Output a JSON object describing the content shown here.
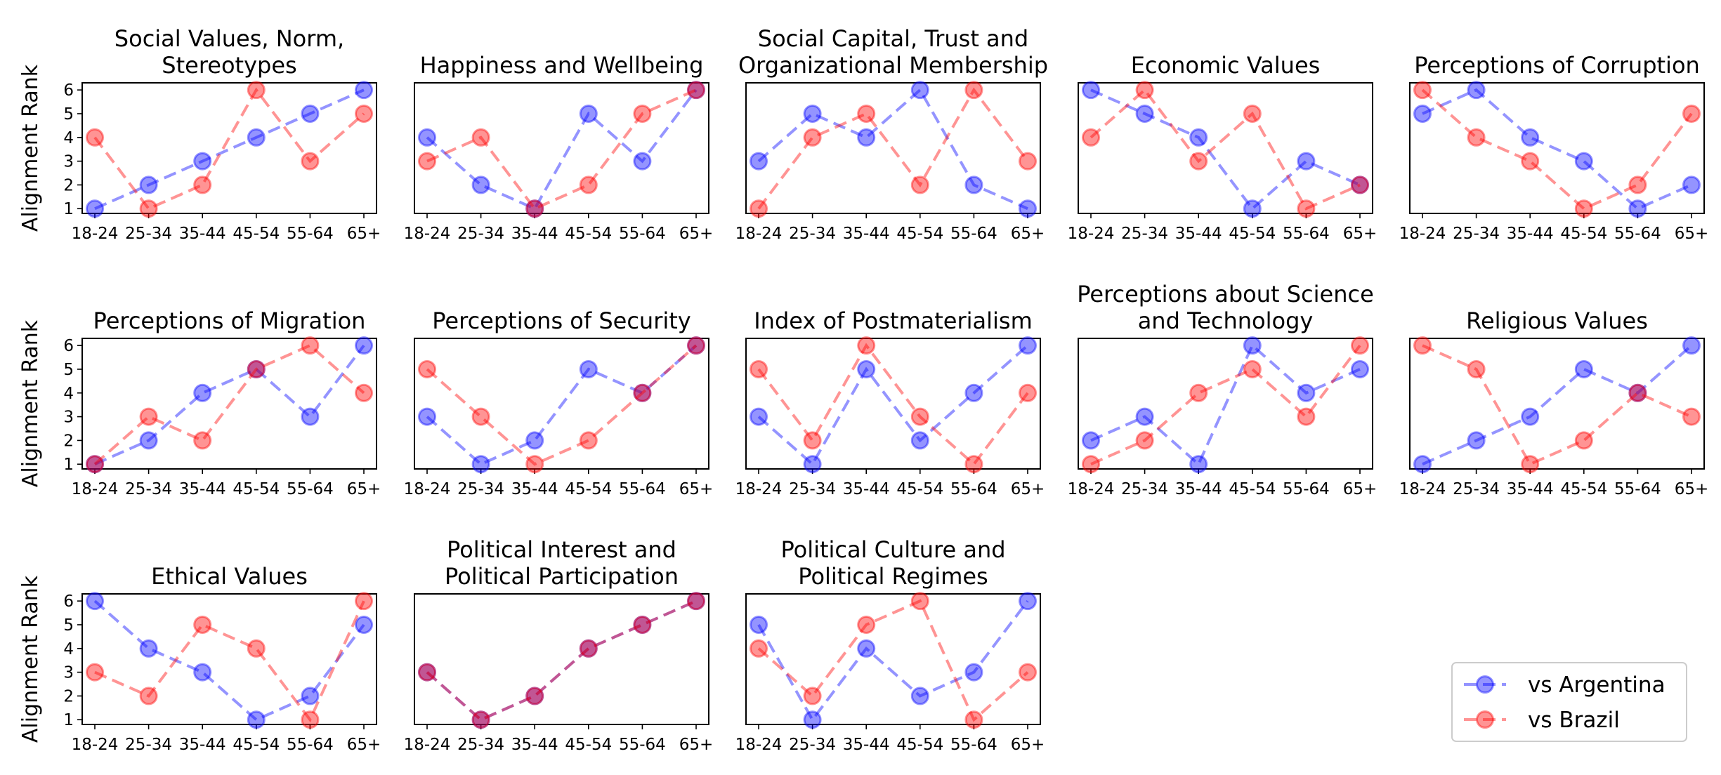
{
  "chart_data": {
    "type": "line",
    "ylabel": "Alignment Rank",
    "categories": [
      "18-24",
      "25-34",
      "35-44",
      "45-54",
      "55-64",
      "65+"
    ],
    "yticks": [
      1,
      2,
      3,
      4,
      5,
      6
    ],
    "ylim": [
      0.8,
      6.3
    ],
    "grid": false,
    "legend_position": "bottom-right",
    "colors": {
      "vs Argentina": "#0000ff",
      "vs Brazil": "#ff0000"
    },
    "legend": [
      "vs Argentina",
      "vs Brazil"
    ],
    "panels": [
      {
        "title": [
          "Social Values, Norm,",
          "Stereotypes"
        ],
        "series": [
          {
            "name": "vs Argentina",
            "values": [
              1,
              2,
              3,
              4,
              5,
              6
            ]
          },
          {
            "name": "vs Brazil",
            "values": [
              4,
              1,
              2,
              6,
              3,
              5
            ]
          }
        ]
      },
      {
        "title": [
          "Happiness and Wellbeing"
        ],
        "series": [
          {
            "name": "vs Argentina",
            "values": [
              4,
              2,
              1,
              5,
              3,
              6
            ]
          },
          {
            "name": "vs Brazil",
            "values": [
              3,
              4,
              1,
              2,
              5,
              6
            ]
          }
        ]
      },
      {
        "title": [
          "Social Capital, Trust and",
          "Organizational Membership"
        ],
        "series": [
          {
            "name": "vs Argentina",
            "values": [
              3,
              5,
              4,
              6,
              2,
              1
            ]
          },
          {
            "name": "vs Brazil",
            "values": [
              1,
              4,
              5,
              2,
              6,
              3
            ]
          }
        ]
      },
      {
        "title": [
          "Economic Values"
        ],
        "series": [
          {
            "name": "vs Argentina",
            "values": [
              6,
              5,
              4,
              1,
              3,
              2
            ]
          },
          {
            "name": "vs Brazil",
            "values": [
              4,
              6,
              3,
              5,
              1,
              2
            ]
          }
        ]
      },
      {
        "title": [
          "Perceptions of Corruption"
        ],
        "series": [
          {
            "name": "vs Argentina",
            "values": [
              5,
              6,
              4,
              3,
              1,
              2
            ]
          },
          {
            "name": "vs Brazil",
            "values": [
              6,
              4,
              3,
              1,
              2,
              5
            ]
          }
        ]
      },
      {
        "title": [
          "Perceptions of Migration"
        ],
        "series": [
          {
            "name": "vs Argentina",
            "values": [
              1,
              2,
              4,
              5,
              3,
              6
            ]
          },
          {
            "name": "vs Brazil",
            "values": [
              1,
              3,
              2,
              5,
              6,
              4
            ]
          }
        ]
      },
      {
        "title": [
          "Perceptions of Security"
        ],
        "series": [
          {
            "name": "vs Argentina",
            "values": [
              3,
              1,
              2,
              5,
              4,
              6
            ]
          },
          {
            "name": "vs Brazil",
            "values": [
              5,
              3,
              1,
              2,
              4,
              6
            ]
          }
        ]
      },
      {
        "title": [
          "Index of Postmaterialism"
        ],
        "series": [
          {
            "name": "vs Argentina",
            "values": [
              3,
              1,
              5,
              2,
              4,
              6
            ]
          },
          {
            "name": "vs Brazil",
            "values": [
              5,
              2,
              6,
              3,
              1,
              4
            ]
          }
        ]
      },
      {
        "title": [
          "Perceptions about Science",
          "and Technology"
        ],
        "series": [
          {
            "name": "vs Argentina",
            "values": [
              2,
              3,
              1,
              6,
              4,
              5
            ]
          },
          {
            "name": "vs Brazil",
            "values": [
              1,
              2,
              4,
              5,
              3,
              6
            ]
          }
        ]
      },
      {
        "title": [
          "Religious Values"
        ],
        "series": [
          {
            "name": "vs Argentina",
            "values": [
              1,
              2,
              3,
              5,
              4,
              6
            ]
          },
          {
            "name": "vs Brazil",
            "values": [
              6,
              5,
              1,
              2,
              4,
              3
            ]
          }
        ]
      },
      {
        "title": [
          "Ethical Values"
        ],
        "series": [
          {
            "name": "vs Argentina",
            "values": [
              6,
              4,
              3,
              1,
              2,
              5
            ]
          },
          {
            "name": "vs Brazil",
            "values": [
              3,
              2,
              5,
              4,
              1,
              6
            ]
          }
        ]
      },
      {
        "title": [
          "Political Interest and",
          "Political Participation"
        ],
        "series": [
          {
            "name": "vs Argentina",
            "values": [
              3,
              1,
              2,
              4,
              5,
              6
            ]
          },
          {
            "name": "vs Brazil",
            "values": [
              3,
              1,
              2,
              4,
              5,
              6
            ]
          }
        ]
      },
      {
        "title": [
          "Political Culture and",
          "Political Regimes"
        ],
        "series": [
          {
            "name": "vs Argentina",
            "values": [
              5,
              1,
              4,
              2,
              3,
              6
            ]
          },
          {
            "name": "vs Brazil",
            "values": [
              4,
              2,
              5,
              6,
              1,
              3
            ]
          }
        ]
      }
    ]
  }
}
